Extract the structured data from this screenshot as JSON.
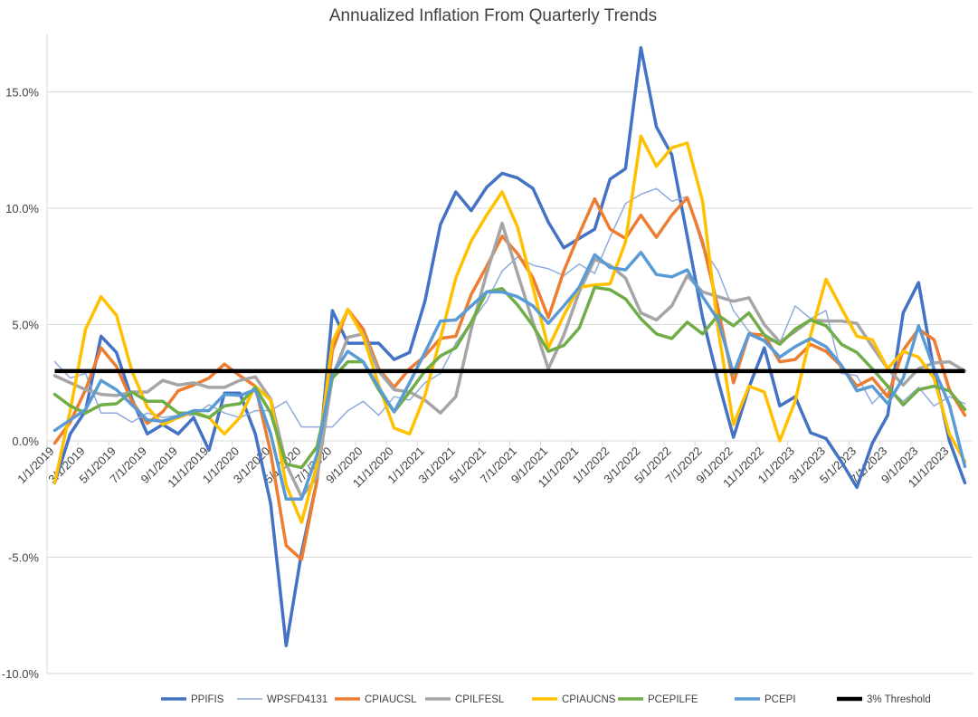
{
  "chart_data": {
    "type": "line",
    "title": "Annualized Inflation From Quarterly Trends",
    "xlabel": "",
    "ylabel": "",
    "x_interval": "monthly",
    "tick_labels": [
      "1/1/2019",
      "3/1/2019",
      "5/1/2019",
      "7/1/2019",
      "9/1/2019",
      "11/1/2019",
      "1/1/2020",
      "3/1/2020",
      "5/1/2020",
      "7/1/2020",
      "9/1/2020",
      "11/1/2020",
      "1/1/2021",
      "3/1/2021",
      "5/1/2021",
      "7/1/2021",
      "9/1/2021",
      "11/1/2021",
      "1/1/2022",
      "3/1/2022",
      "5/1/2022",
      "7/1/2022",
      "9/1/2022",
      "11/1/2022",
      "1/1/2023",
      "3/1/2023",
      "5/1/2023",
      "7/1/2023",
      "9/1/2023",
      "11/1/2023"
    ],
    "ylim": [
      -10,
      17.5
    ],
    "yticks": [
      -10,
      -5,
      0,
      5,
      10,
      15
    ],
    "ytick_labels": [
      "-10.0%",
      "-5.0%",
      "0.0%",
      "5.0%",
      "10.0%",
      "15.0%"
    ],
    "grid": true,
    "legend_position": "bottom",
    "series": [
      {
        "name": "PPIFIS",
        "color": "#4472C4",
        "width": 3.5,
        "values": [
          -1.8,
          0.3,
          1.3,
          4.5,
          3.8,
          1.8,
          0.3,
          0.7,
          0.3,
          1.0,
          -0.4,
          2.05,
          2.05,
          0.3,
          -2.7,
          -8.8,
          -4.8,
          -1.7,
          5.6,
          4.2,
          4.2,
          4.2,
          3.5,
          3.8,
          6.0,
          9.3,
          10.7,
          9.9,
          10.9,
          11.5,
          11.3,
          10.85,
          9.4,
          8.3,
          8.7,
          9.1,
          11.25,
          11.7,
          16.9,
          13.5,
          12.3,
          8.8,
          5.3,
          2.6,
          0.15,
          2.3,
          4.0,
          1.5,
          1.9,
          0.35,
          0.1,
          -0.9,
          -2.0,
          -0.1,
          1.1,
          5.5,
          6.8,
          3.0,
          0.0,
          -1.8
        ]
      },
      {
        "name": "WPSFD4131",
        "color": "#8FAADC",
        "width": 1.5,
        "values": [
          3.4,
          2.7,
          2.9,
          1.2,
          1.2,
          0.8,
          1.2,
          1.0,
          1.1,
          1.1,
          1.55,
          1.2,
          1.0,
          1.3,
          1.3,
          1.7,
          0.6,
          0.6,
          0.6,
          1.3,
          1.7,
          1.1,
          1.9,
          1.75,
          2.5,
          2.9,
          4.2,
          5.1,
          6.0,
          7.3,
          7.9,
          7.55,
          7.4,
          7.1,
          7.6,
          7.2,
          8.75,
          10.2,
          10.6,
          10.85,
          10.3,
          10.5,
          8.3,
          7.3,
          5.6,
          4.7,
          4.35,
          4.2,
          5.8,
          5.25,
          5.6,
          2.9,
          2.8,
          1.6,
          2.3,
          1.7,
          2.3,
          1.5,
          1.9,
          1.6
        ]
      },
      {
        "name": "CPIAUCSL",
        "color": "#ED7D31",
        "width": 3.5,
        "values": [
          -0.1,
          0.8,
          2.2,
          4.0,
          3.2,
          1.7,
          0.75,
          1.25,
          2.15,
          2.4,
          2.7,
          3.3,
          2.8,
          2.35,
          -0.5,
          -4.5,
          -5.1,
          -1.7,
          3.9,
          5.65,
          4.8,
          3.1,
          2.3,
          3.1,
          3.65,
          4.4,
          4.5,
          6.3,
          7.5,
          8.8,
          8.05,
          7.0,
          5.3,
          7.3,
          8.9,
          10.4,
          9.1,
          8.7,
          9.7,
          8.75,
          9.7,
          10.45,
          8.55,
          5.7,
          2.5,
          4.6,
          4.55,
          3.4,
          3.5,
          4.15,
          3.85,
          3.2,
          2.35,
          2.7,
          1.9,
          3.9,
          4.8,
          4.35,
          2.2,
          1.1
        ]
      },
      {
        "name": "CPILFESL",
        "color": "#A5A5A5",
        "width": 3.5,
        "values": [
          2.8,
          2.5,
          2.2,
          2.0,
          1.95,
          2.1,
          2.1,
          2.6,
          2.4,
          2.5,
          2.3,
          2.3,
          2.6,
          2.75,
          1.8,
          -1.0,
          -2.4,
          -1.55,
          2.75,
          4.45,
          4.6,
          3.0,
          2.2,
          2.1,
          1.75,
          1.2,
          1.9,
          4.8,
          7.2,
          9.35,
          7.2,
          5.1,
          3.1,
          4.55,
          6.4,
          7.8,
          7.55,
          7.0,
          5.5,
          5.2,
          5.8,
          7.1,
          6.4,
          6.2,
          6.0,
          6.15,
          5.0,
          4.25,
          4.7,
          5.2,
          5.15,
          5.15,
          5.05,
          4.05,
          3.1,
          2.4,
          3.1,
          3.35,
          3.4,
          3.0
        ]
      },
      {
        "name": "CPIAUCNS",
        "color": "#FFC000",
        "width": 3.5,
        "values": [
          -1.8,
          1.3,
          4.8,
          6.2,
          5.4,
          3.0,
          1.45,
          0.7,
          1.0,
          1.25,
          1.0,
          0.3,
          1.0,
          2.35,
          1.75,
          -1.9,
          -3.5,
          -1.0,
          4.25,
          5.65,
          4.5,
          2.4,
          0.55,
          0.3,
          1.95,
          4.4,
          7.0,
          8.6,
          9.7,
          10.7,
          9.2,
          6.6,
          4.0,
          5.4,
          6.6,
          6.7,
          6.75,
          8.55,
          13.1,
          11.8,
          12.6,
          12.8,
          10.3,
          4.8,
          0.7,
          2.35,
          2.1,
          0.0,
          1.7,
          4.55,
          6.95,
          5.7,
          4.5,
          4.35,
          3.1,
          3.85,
          3.6,
          2.7,
          0.3,
          -0.9
        ]
      },
      {
        "name": "PCEPILFE",
        "color": "#70AD47",
        "width": 3.5,
        "values": [
          2.0,
          1.5,
          1.2,
          1.55,
          1.6,
          2.1,
          1.7,
          1.7,
          1.2,
          1.2,
          1.0,
          1.5,
          1.6,
          2.3,
          1.2,
          -1.0,
          -1.15,
          -0.25,
          2.7,
          3.4,
          3.4,
          2.2,
          1.25,
          2.1,
          3.0,
          3.65,
          4.0,
          5.1,
          6.4,
          6.55,
          5.85,
          4.95,
          3.85,
          4.1,
          4.85,
          6.6,
          6.5,
          6.1,
          5.25,
          4.6,
          4.4,
          5.1,
          4.6,
          5.4,
          4.95,
          5.5,
          4.55,
          4.15,
          4.8,
          5.2,
          4.95,
          4.15,
          3.8,
          3.1,
          2.35,
          1.55,
          2.2,
          2.35,
          2.15,
          1.35
        ]
      },
      {
        "name": "PCEPI",
        "color": "#5B9BD5",
        "width": 3.5,
        "values": [
          0.45,
          0.9,
          1.35,
          2.6,
          2.2,
          1.55,
          0.9,
          0.85,
          1.05,
          1.3,
          1.3,
          2.0,
          1.95,
          2.2,
          0.3,
          -2.5,
          -2.5,
          -0.6,
          2.9,
          3.85,
          3.4,
          2.3,
          1.25,
          2.5,
          3.8,
          5.15,
          5.2,
          5.8,
          6.4,
          6.4,
          6.2,
          5.8,
          5.05,
          5.8,
          6.6,
          8.0,
          7.45,
          7.35,
          8.1,
          7.15,
          7.05,
          7.35,
          6.2,
          5.2,
          2.9,
          4.6,
          4.3,
          3.6,
          4.05,
          4.4,
          4.05,
          3.25,
          2.15,
          2.35,
          1.6,
          2.7,
          4.95,
          3.1,
          1.55,
          -1.1
        ]
      }
    ],
    "threshold": {
      "name": "3% Threshold",
      "value": 3.0,
      "color": "#000000"
    }
  }
}
